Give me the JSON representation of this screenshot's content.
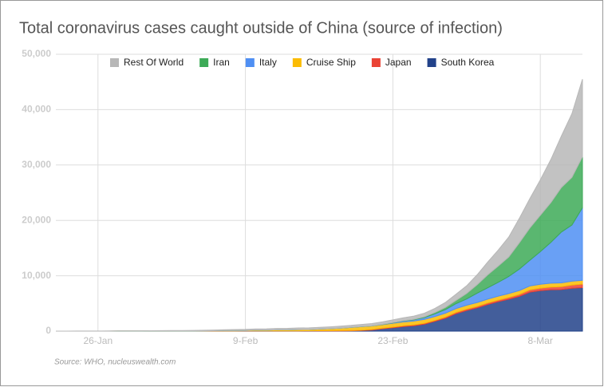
{
  "chart_data": {
    "type": "stacked_area",
    "title": "Total coronavirus cases caught outside of China (source of infection)",
    "source": "Source: WHO, nucleuswealth.com",
    "categories": [
      null,
      null,
      null,
      null,
      "26-Jan",
      null,
      null,
      null,
      null,
      null,
      null,
      null,
      null,
      null,
      null,
      null,
      null,
      null,
      "9-Feb",
      null,
      null,
      null,
      null,
      null,
      null,
      null,
      null,
      null,
      null,
      null,
      null,
      null,
      "23-Feb",
      null,
      null,
      null,
      null,
      null,
      null,
      null,
      null,
      null,
      null,
      null,
      null,
      null,
      "8-Mar",
      null,
      null,
      null,
      null
    ],
    "series": [
      {
        "name": "Rest Of World",
        "color": "#b7b7b7",
        "values": [
          4,
          5,
          8,
          12,
          15,
          20,
          25,
          30,
          40,
          50,
          60,
          70,
          80,
          95,
          110,
          130,
          150,
          170,
          190,
          210,
          230,
          250,
          270,
          290,
          300,
          310,
          330,
          350,
          370,
          390,
          420,
          450,
          480,
          520,
          580,
          650,
          750,
          900,
          1100,
          1400,
          1800,
          2300,
          2900,
          3600,
          4400,
          5300,
          6400,
          7800,
          9300,
          11500,
          14000
        ]
      },
      {
        "name": "Iran",
        "color": "#3daa57",
        "values": [
          0,
          0,
          0,
          0,
          0,
          0,
          0,
          0,
          0,
          0,
          0,
          0,
          0,
          0,
          0,
          0,
          0,
          0,
          0,
          0,
          0,
          0,
          0,
          0,
          0,
          0,
          0,
          0,
          2,
          5,
          18,
          28,
          43,
          61,
          95,
          139,
          245,
          388,
          593,
          978,
          1501,
          2336,
          2922,
          3513,
          4747,
          5823,
          6566,
          7161,
          8042,
          8600,
          9200
        ]
      },
      {
        "name": "Italy",
        "color": "#4f8ff3",
        "values": [
          0,
          0,
          0,
          0,
          0,
          0,
          0,
          0,
          0,
          2,
          2,
          2,
          2,
          2,
          2,
          2,
          3,
          3,
          3,
          3,
          3,
          3,
          3,
          3,
          3,
          3,
          3,
          3,
          3,
          3,
          3,
          20,
          79,
          157,
          229,
          323,
          470,
          655,
          888,
          1128,
          1694,
          2036,
          2502,
          3089,
          3858,
          4636,
          5883,
          7375,
          9172,
          10149,
          13100
        ]
      },
      {
        "name": "Cruise Ship",
        "color": "#fbbc04",
        "values": [
          0,
          0,
          0,
          0,
          0,
          0,
          0,
          0,
          0,
          0,
          0,
          0,
          0,
          0,
          10,
          20,
          61,
          64,
          70,
          135,
          135,
          175,
          174,
          218,
          218,
          285,
          355,
          454,
          542,
          621,
          634,
          634,
          691,
          691,
          691,
          705,
          705,
          705,
          705,
          705,
          705,
          705,
          705,
          705,
          705,
          705,
          705,
          696,
          696,
          696,
          696
        ]
      },
      {
        "name": "Japan",
        "color": "#ea4335",
        "values": [
          0,
          1,
          1,
          1,
          3,
          3,
          4,
          6,
          7,
          11,
          15,
          20,
          20,
          20,
          22,
          25,
          25,
          26,
          26,
          26,
          28,
          28,
          29,
          33,
          41,
          53,
          59,
          65,
          73,
          85,
          93,
          105,
          132,
          144,
          157,
          164,
          186,
          210,
          230,
          239,
          254,
          268,
          284,
          317,
          349,
          408,
          455,
          488,
          514,
          568,
          620
        ]
      },
      {
        "name": "South Korea",
        "color": "#22428a",
        "values": [
          1,
          1,
          2,
          2,
          3,
          4,
          4,
          4,
          4,
          11,
          12,
          15,
          15,
          16,
          19,
          23,
          24,
          24,
          25,
          27,
          28,
          28,
          28,
          28,
          29,
          30,
          31,
          31,
          51,
          104,
          204,
          433,
          602,
          833,
          977,
          1261,
          1766,
          2337,
          3150,
          3736,
          4212,
          4812,
          5328,
          5766,
          6284,
          7041,
          7314,
          7478,
          7513,
          7755,
          7869
        ]
      }
    ],
    "ylim": [
      0,
      50000
    ],
    "yticks": [
      0,
      {
        "value": 10000,
        "label": "10,000"
      },
      {
        "value": 20000,
        "label": "20,000"
      },
      {
        "value": 30000,
        "label": "30,000"
      },
      {
        "value": 40000,
        "label": "40,000"
      },
      {
        "value": 50000,
        "label": "50,000"
      }
    ],
    "grid": true,
    "legend": "top"
  }
}
